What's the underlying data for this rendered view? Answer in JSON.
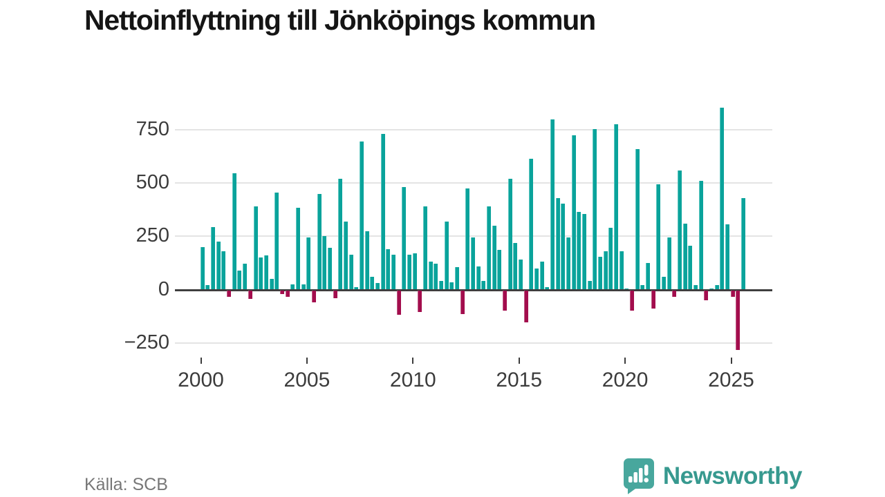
{
  "header": {
    "title": "Nettoinflyttning till Jönköpings kommun"
  },
  "footer": {
    "source": "Källa: SCB",
    "brand": "Newsworthy"
  },
  "colors": {
    "positive_bar": "#0aa39b",
    "negative_bar": "#a30d4d",
    "gridline": "#e4e4e4",
    "zero_line": "#3f3f3f",
    "axis_text": "#3c3c3c",
    "title_text": "#151515",
    "source_text": "#777777",
    "brand_teal": "#48a79d"
  },
  "chart_data": {
    "type": "bar",
    "title": "Nettoinflyttning till Jönköpings kommun",
    "xlabel": "",
    "ylabel": "",
    "legend": "none",
    "grid": "horizontal",
    "ylim": [
      -300,
      900
    ],
    "yticks": [
      750,
      500,
      250,
      0,
      -250
    ],
    "ytick_labels": [
      "750",
      "500",
      "250",
      "0",
      "−250"
    ],
    "xticks": [
      2000,
      2005,
      2010,
      2015,
      2020,
      2025
    ],
    "xtick_labels": [
      "2000",
      "2005",
      "2010",
      "2015",
      "2020",
      "2025"
    ],
    "categories": [
      "2000 K1",
      "2000 K2",
      "2000 K3",
      "2000 K4",
      "2001 K1",
      "2001 K2",
      "2001 K3",
      "2001 K4",
      "2002 K1",
      "2002 K2",
      "2002 K3",
      "2002 K4",
      "2003 K1",
      "2003 K2",
      "2003 K3",
      "2003 K4",
      "2004 K1",
      "2004 K2",
      "2004 K3",
      "2004 K4",
      "2005 K1",
      "2005 K2",
      "2005 K3",
      "2005 K4",
      "2006 K1",
      "2006 K2",
      "2006 K3",
      "2006 K4",
      "2007 K1",
      "2007 K2",
      "2007 K3",
      "2007 K4",
      "2008 K1",
      "2008 K2",
      "2008 K3",
      "2008 K4",
      "2009 K1",
      "2009 K2",
      "2009 K3",
      "2009 K4",
      "2010 K1",
      "2010 K2",
      "2010 K3",
      "2010 K4",
      "2011 K1",
      "2011 K2",
      "2011 K3",
      "2011 K4",
      "2012 K1",
      "2012 K2",
      "2012 K3",
      "2012 K4",
      "2013 K1",
      "2013 K2",
      "2013 K3",
      "2013 K4",
      "2014 K1",
      "2014 K2",
      "2014 K3",
      "2014 K4",
      "2015 K1",
      "2015 K2",
      "2015 K3",
      "2015 K4",
      "2016 K1",
      "2016 K2",
      "2016 K3",
      "2016 K4",
      "2017 K1",
      "2017 K2",
      "2017 K3",
      "2017 K4",
      "2018 K1",
      "2018 K2",
      "2018 K3",
      "2018 K4",
      "2019 K1",
      "2019 K2",
      "2019 K3",
      "2019 K4",
      "2020 K1",
      "2020 K2",
      "2020 K3",
      "2020 K4",
      "2021 K1",
      "2021 K2",
      "2021 K3",
      "2021 K4",
      "2022 K1",
      "2022 K2",
      "2022 K3",
      "2022 K4",
      "2023 K1",
      "2023 K2",
      "2023 K3",
      "2023 K4",
      "2024 K1",
      "2024 K2",
      "2024 K3",
      "2024 K4",
      "2025 K1",
      "2025 K2",
      "2025 K3"
    ],
    "values": [
      200,
      20,
      295,
      225,
      180,
      -30,
      545,
      90,
      120,
      -40,
      390,
      150,
      160,
      50,
      455,
      -15,
      -30,
      25,
      385,
      25,
      245,
      -55,
      450,
      250,
      195,
      -35,
      520,
      320,
      165,
      10,
      695,
      275,
      60,
      30,
      730,
      190,
      165,
      -115,
      480,
      165,
      170,
      -100,
      390,
      130,
      120,
      40,
      320,
      35,
      105,
      -110,
      475,
      245,
      110,
      40,
      390,
      300,
      185,
      -95,
      520,
      220,
      140,
      -150,
      615,
      100,
      130,
      10,
      800,
      430,
      405,
      245,
      725,
      365,
      355,
      40,
      755,
      155,
      180,
      290,
      775,
      180,
      5,
      -95,
      660,
      20,
      125,
      -85,
      495,
      60,
      245,
      -30,
      560,
      310,
      205,
      20,
      510,
      -45,
      5,
      20,
      855,
      305,
      -30,
      -280,
      430
    ]
  }
}
